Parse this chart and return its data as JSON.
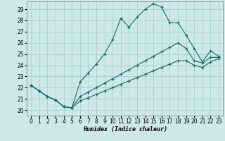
{
  "xlabel": "Humidex (Indice chaleur)",
  "xlim": [
    -0.5,
    23.5
  ],
  "ylim": [
    19.5,
    29.7
  ],
  "xticks": [
    0,
    1,
    2,
    3,
    4,
    5,
    6,
    7,
    8,
    9,
    10,
    11,
    12,
    13,
    14,
    15,
    16,
    17,
    18,
    19,
    20,
    21,
    22,
    23
  ],
  "yticks": [
    20,
    21,
    22,
    23,
    24,
    25,
    26,
    27,
    28,
    29
  ],
  "bg_color": "#cde8e8",
  "grid_color": "#aacfcf",
  "line_color": "#1a6b6b",
  "lines": [
    {
      "x": [
        0,
        1,
        2,
        3,
        4,
        5,
        6,
        7,
        8,
        9,
        10,
        11,
        12,
        13,
        14,
        15,
        16,
        17,
        18,
        19,
        20,
        21,
        22,
        23
      ],
      "y": [
        22.2,
        21.7,
        21.2,
        20.9,
        20.3,
        20.2,
        22.5,
        23.3,
        24.1,
        25.0,
        26.3,
        28.2,
        27.4,
        28.3,
        29.0,
        29.5,
        29.2,
        27.8,
        27.8,
        26.7,
        25.5,
        24.3,
        25.3,
        24.8
      ]
    },
    {
      "x": [
        0,
        1,
        2,
        3,
        4,
        5,
        6,
        7,
        8,
        9,
        10,
        11,
        12,
        13,
        14,
        15,
        16,
        17,
        18,
        19,
        20,
        21,
        22,
        23
      ],
      "y": [
        22.2,
        21.7,
        21.2,
        20.9,
        20.3,
        20.2,
        21.2,
        21.6,
        22.0,
        22.4,
        22.8,
        23.2,
        23.6,
        24.0,
        24.4,
        24.8,
        25.2,
        25.6,
        26.0,
        25.5,
        24.4,
        24.2,
        24.7,
        24.7
      ]
    },
    {
      "x": [
        0,
        1,
        2,
        3,
        4,
        5,
        6,
        7,
        8,
        9,
        10,
        11,
        12,
        13,
        14,
        15,
        16,
        17,
        18,
        19,
        20,
        21,
        22,
        23
      ],
      "y": [
        22.2,
        21.7,
        21.2,
        20.9,
        20.3,
        20.2,
        20.8,
        21.1,
        21.4,
        21.7,
        22.0,
        22.3,
        22.6,
        22.9,
        23.2,
        23.5,
        23.8,
        24.1,
        24.4,
        24.4,
        24.0,
        23.8,
        24.3,
        24.6
      ]
    }
  ]
}
